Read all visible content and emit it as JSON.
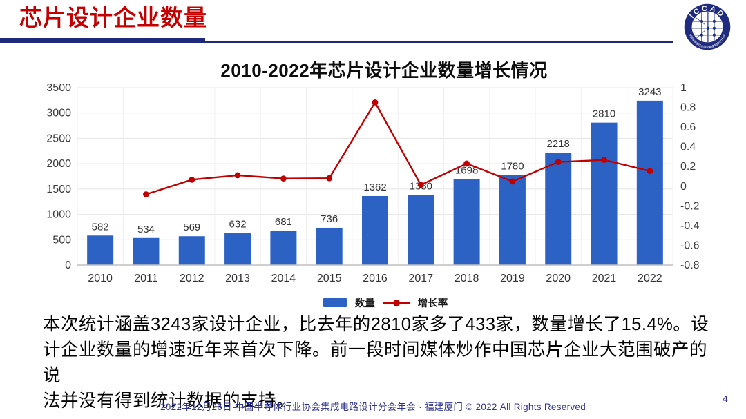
{
  "header": {
    "title": "芯片设计企业数量",
    "logo": {
      "name": "ICCAD",
      "ring_text": "中国半导体行业协会集成电路设计分会"
    }
  },
  "chart_data": {
    "type": "bar",
    "title": "2010-2022年芯片设计企业数量增长情况",
    "categories": [
      "2010",
      "2011",
      "2012",
      "2013",
      "2014",
      "2015",
      "2016",
      "2017",
      "2018",
      "2019",
      "2020",
      "2021",
      "2022"
    ],
    "series": [
      {
        "name": "数量",
        "type": "bar",
        "color": "#2D62C5",
        "values": [
          582,
          534,
          569,
          632,
          681,
          736,
          1362,
          1380,
          1698,
          1780,
          2218,
          2810,
          3243
        ]
      },
      {
        "name": "增长率",
        "type": "line",
        "color": "#C00000",
        "values": [
          null,
          -0.082,
          0.066,
          0.111,
          0.078,
          0.081,
          0.85,
          0.013,
          0.23,
          0.048,
          0.246,
          0.267,
          0.154
        ]
      }
    ],
    "left_axis": {
      "min": 0,
      "max": 3500,
      "ticks": [
        0,
        500,
        1000,
        1500,
        2000,
        2500,
        3000,
        3500
      ]
    },
    "right_axis": {
      "min": -0.8,
      "max": 1,
      "ticks": [
        1,
        0.8,
        0.6,
        0.4,
        0.2,
        0,
        -0.2,
        -0.4,
        -0.6,
        -0.8
      ]
    },
    "grid": true,
    "legend_position": "bottom"
  },
  "summary": {
    "lines": [
      "本次统计涵盖3243家设计企业，比去年的2810家多了433家，数量增长了15.4%。设",
      "计企业数量的增速近年来首次下降。前一段时间媒体炒作中国芯片企业大范围破产的说",
      "法并没有得到统计数据的支持。"
    ]
  },
  "footer": {
    "text": "2022年12月26日 中国半导体行业协会集成电路设计分会年会 · 福建厦门 © 2022 All Rights Reserved",
    "page_number": "4"
  },
  "colors": {
    "title_red": "#C40000",
    "rule_navy": "#202A7C",
    "bar_blue": "#2D62C5",
    "line_red": "#C00000",
    "footer_navy": "#2F3490",
    "grid_gray": "#E4E4E4"
  }
}
